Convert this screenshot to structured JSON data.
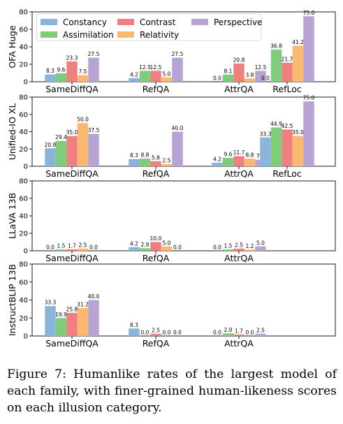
{
  "caption": "Figure 7: Humanlike rates of the largest model of each family, with finer-grained human-likeness scores on each illusion category.",
  "chart_data": [
    {
      "type": "bar",
      "ylabel": "OFA Huge",
      "ylim": [
        0,
        80
      ],
      "yticks": [
        0,
        20,
        40,
        60,
        80
      ],
      "categories": [
        "SameDiffQA",
        "RefQA",
        "AttrQA",
        "RefLoc"
      ],
      "legend": "top",
      "series": [
        {
          "name": "Constancy",
          "color": "#8ab4d9",
          "values": [
            8.3,
            4.2,
            0.0,
            0.0
          ]
        },
        {
          "name": "Assimilation",
          "color": "#7fcc7a",
          "values": [
            9.6,
            12.5,
            8.1,
            36.8
          ]
        },
        {
          "name": "Contrast",
          "color": "#f08080",
          "values": [
            23.3,
            12.5,
            20.8,
            21.7
          ]
        },
        {
          "name": "Relativity",
          "color": "#fbb870",
          "values": [
            7.5,
            5.0,
            3.8,
            41.2
          ]
        },
        {
          "name": "Perspective",
          "color": "#b7a3d4",
          "values": [
            27.5,
            27.5,
            12.5,
            75.0
          ]
        }
      ]
    },
    {
      "type": "bar",
      "ylabel": "Unified-IO XL",
      "ylim": [
        0,
        80
      ],
      "yticks": [
        0,
        20,
        40,
        60,
        80
      ],
      "categories": [
        "SameDiffQA",
        "RefQA",
        "AttrQA",
        "RefLoc"
      ],
      "series": [
        {
          "name": "Constancy",
          "color": "#8ab4d9",
          "values": [
            20.8,
            8.3,
            4.2,
            33.3
          ]
        },
        {
          "name": "Assimilation",
          "color": "#7fcc7a",
          "values": [
            29.4,
            8.8,
            9.6,
            44.9
          ]
        },
        {
          "name": "Contrast",
          "color": "#f08080",
          "values": [
            35.0,
            5.8,
            11.7,
            42.5
          ]
        },
        {
          "name": "Relativity",
          "color": "#fbb870",
          "values": [
            50.0,
            2.5,
            8.8,
            35.0
          ]
        },
        {
          "name": "Perspective",
          "color": "#b7a3d4",
          "values": [
            37.5,
            40.0,
            7.5,
            75.0
          ]
        }
      ]
    },
    {
      "type": "bar",
      "ylabel": "LLaVA 13B",
      "ylim": [
        0,
        80
      ],
      "yticks": [
        0,
        20,
        40,
        60,
        80
      ],
      "categories": [
        "SameDiffQA",
        "RefQA",
        "AttrQA"
      ],
      "series": [
        {
          "name": "Constancy",
          "color": "#8ab4d9",
          "values": [
            0.0,
            4.2,
            0.0
          ]
        },
        {
          "name": "Assimilation",
          "color": "#7fcc7a",
          "values": [
            1.5,
            2.9,
            1.5
          ]
        },
        {
          "name": "Contrast",
          "color": "#f08080",
          "values": [
            1.7,
            10.0,
            2.5
          ]
        },
        {
          "name": "Relativity",
          "color": "#fbb870",
          "values": [
            2.5,
            5.0,
            1.2
          ]
        },
        {
          "name": "Perspective",
          "color": "#b7a3d4",
          "values": [
            0.0,
            0.0,
            5.0
          ]
        }
      ]
    },
    {
      "type": "bar",
      "ylabel": "InstructBLIP 13B",
      "ylim": [
        0,
        80
      ],
      "yticks": [
        0,
        20,
        40,
        60,
        80
      ],
      "categories": [
        "SameDiffQA",
        "RefQA",
        "AttrQA"
      ],
      "series": [
        {
          "name": "Constancy",
          "color": "#8ab4d9",
          "values": [
            33.3,
            8.3,
            0.0
          ]
        },
        {
          "name": "Assimilation",
          "color": "#7fcc7a",
          "values": [
            19.9,
            0.0,
            2.9
          ]
        },
        {
          "name": "Contrast",
          "color": "#f08080",
          "values": [
            25.8,
            2.5,
            1.7
          ]
        },
        {
          "name": "Relativity",
          "color": "#fbb870",
          "values": [
            31.2,
            0.0,
            0.0
          ]
        },
        {
          "name": "Perspective",
          "color": "#b7a3d4",
          "values": [
            40.0,
            0.0,
            2.5
          ]
        }
      ]
    }
  ]
}
